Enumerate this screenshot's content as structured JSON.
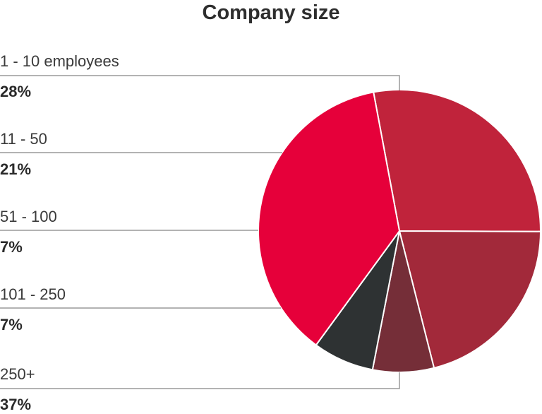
{
  "chart_data": {
    "type": "pie",
    "title": "Company size",
    "slices": [
      {
        "label": "1 - 10 employees",
        "value": 28,
        "display": "28%",
        "color": "#c0233b"
      },
      {
        "label": "11 - 50",
        "value": 21,
        "display": "21%",
        "color": "#a2293a"
      },
      {
        "label": "51 - 100",
        "value": 7,
        "display": "7%",
        "color": "#752e38"
      },
      {
        "label": "101 - 250",
        "value": 7,
        "display": "7%",
        "color": "#2e3233"
      },
      {
        "label": "250+",
        "value": 37,
        "display": "37%",
        "color": "#e6003a"
      }
    ]
  }
}
